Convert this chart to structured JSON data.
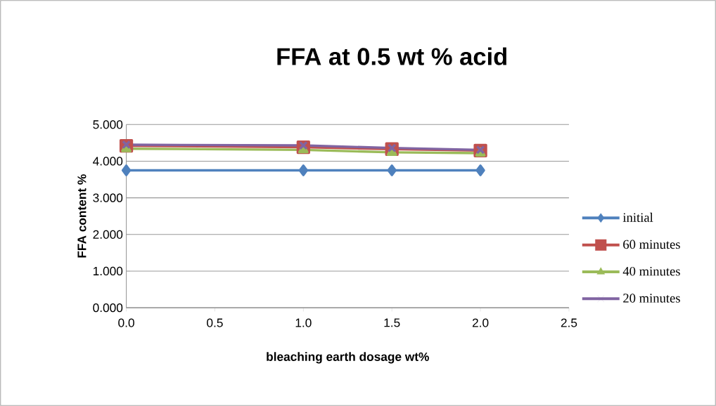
{
  "chart_data": {
    "type": "line",
    "title": "FFA at 0.5 wt % acid",
    "xlabel": "bleaching earth dosage wt%",
    "ylabel": "FFA content %",
    "x": [
      0,
      1,
      1.5,
      2
    ],
    "series": [
      {
        "name": "initial",
        "color": "#4f81bd",
        "marker": "diamond",
        "values": [
          3.75,
          3.75,
          3.75,
          3.75
        ]
      },
      {
        "name": "60 minutes",
        "color": "#c0504d",
        "marker": "square",
        "values": [
          4.42,
          4.38,
          4.33,
          4.29
        ]
      },
      {
        "name": "40 minutes",
        "color": "#9bbb59",
        "marker": "triangle",
        "values": [
          4.34,
          4.31,
          4.24,
          4.22
        ]
      },
      {
        "name": "20 minutes",
        "color": "#8064a2",
        "marker": "cross",
        "values": [
          4.45,
          4.43,
          4.36,
          4.31
        ]
      }
    ],
    "xlim": [
      0,
      2.5
    ],
    "xticks": [
      {
        "value": 0,
        "label": "0.0"
      },
      {
        "value": 0.5,
        "label": "0.5"
      },
      {
        "value": 1,
        "label": "1.0"
      },
      {
        "value": 1.5,
        "label": "1.5"
      },
      {
        "value": 2,
        "label": "2.0"
      },
      {
        "value": 2.5,
        "label": "2.5"
      }
    ],
    "ylim": [
      0,
      5
    ],
    "yticks": [
      {
        "value": 0,
        "label": "0.000"
      },
      {
        "value": 1,
        "label": "1.000"
      },
      {
        "value": 2,
        "label": "2.000"
      },
      {
        "value": 3,
        "label": "3.000"
      },
      {
        "value": 4,
        "label": "4.000"
      },
      {
        "value": 5,
        "label": "5.000"
      }
    ],
    "grid": "y",
    "legend": "right",
    "line_style": "solid"
  }
}
